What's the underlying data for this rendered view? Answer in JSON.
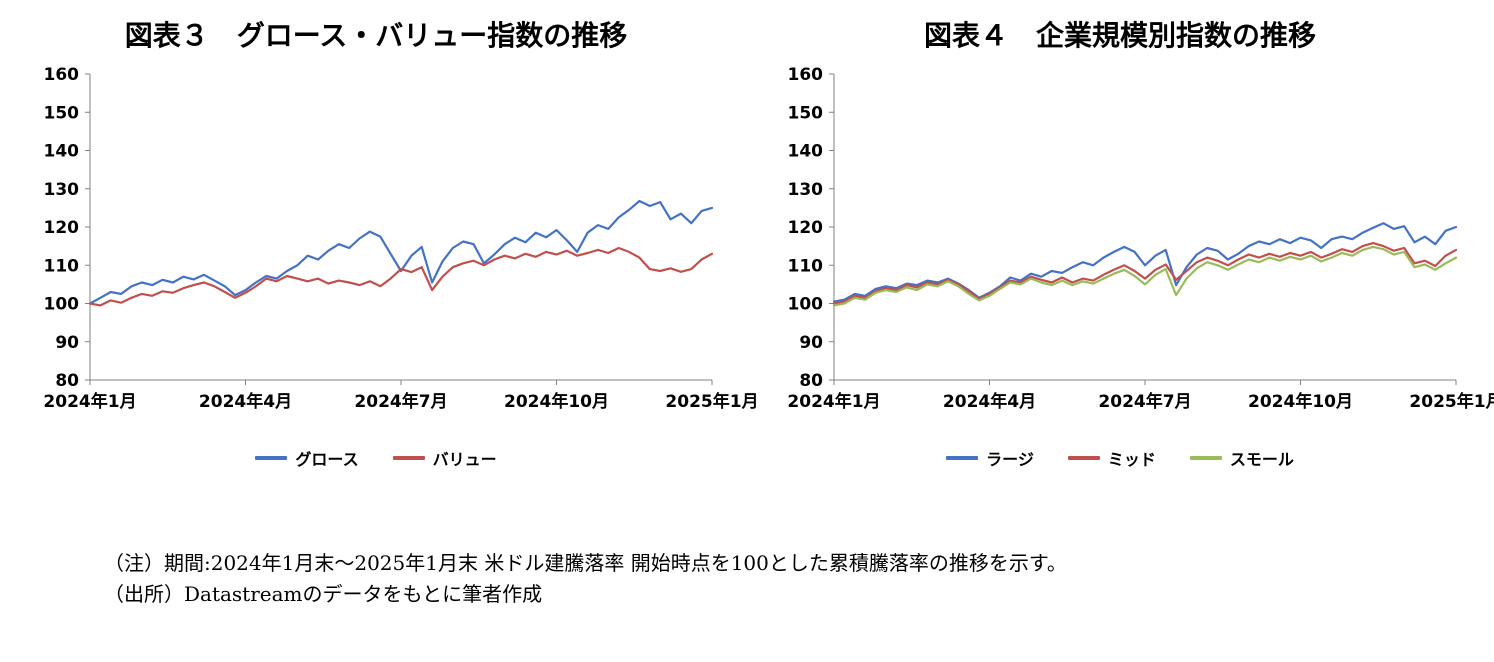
{
  "chart_data": [
    {
      "type": "line",
      "title": "図表３　グロース・バリュー指数の推移",
      "ylim": [
        80,
        160
      ],
      "y_ticks": [
        160,
        150,
        140,
        130,
        120,
        110,
        100,
        90,
        80
      ],
      "x_ticks": [
        "2024年1月",
        "2024年4月",
        "2024年7月",
        "2024年10月",
        "2025年1月"
      ],
      "grid": false,
      "legend_position": "bottom",
      "series": [
        {
          "name": "グロース",
          "color": "#4472C4",
          "values": [
            100,
            101.5,
            103,
            102.5,
            104.5,
            105.5,
            104.8,
            106.2,
            105.5,
            107,
            106.3,
            107.5,
            106,
            104.5,
            102.2,
            103.5,
            105.5,
            107.2,
            106.5,
            108.5,
            110,
            112.5,
            111.5,
            113.8,
            115.5,
            114.5,
            117,
            118.8,
            117.5,
            113,
            108.5,
            112.5,
            114.8,
            105.5,
            111,
            114.5,
            116.2,
            115.5,
            110.5,
            112.8,
            115.5,
            117.2,
            116,
            118.5,
            117.3,
            119.2,
            116.5,
            113.5,
            118.5,
            120.5,
            119.5,
            122.5,
            124.5,
            126.8,
            125.5,
            126.5,
            122,
            123.5,
            121,
            124.2,
            125
          ]
        },
        {
          "name": "バリュー",
          "color": "#C0504D",
          "values": [
            100,
            99.5,
            100.8,
            100.2,
            101.5,
            102.5,
            102,
            103.2,
            102.8,
            104,
            104.8,
            105.5,
            104.5,
            103,
            101.5,
            102.8,
            104.5,
            106.5,
            105.8,
            107.2,
            106.5,
            105.8,
            106.5,
            105.2,
            106,
            105.5,
            104.8,
            105.8,
            104.5,
            106.5,
            109,
            108.2,
            109.5,
            103.5,
            107,
            109.5,
            110.5,
            111.2,
            110,
            111.5,
            112.5,
            111.8,
            113,
            112.2,
            113.5,
            112.8,
            113.8,
            112.5,
            113.2,
            114,
            113.2,
            114.5,
            113.5,
            112,
            109,
            108.5,
            109.2,
            108.3,
            109,
            111.5,
            113
          ]
        }
      ]
    },
    {
      "type": "line",
      "title": "図表４　企業規模別指数の推移",
      "ylim": [
        80,
        160
      ],
      "y_ticks": [
        160,
        150,
        140,
        130,
        120,
        110,
        100,
        90,
        80
      ],
      "x_ticks": [
        "2024年1月",
        "2024年4月",
        "2024年7月",
        "2024年10月",
        "2025年1月"
      ],
      "grid": false,
      "legend_position": "bottom",
      "series": [
        {
          "name": "ラージ",
          "color": "#4472C4",
          "values": [
            100.5,
            101,
            102.5,
            102,
            103.8,
            104.5,
            104,
            105.2,
            104.8,
            106,
            105.5,
            106.5,
            105.2,
            103.5,
            101.5,
            102.8,
            104.5,
            106.8,
            106,
            107.8,
            107,
            108.5,
            108,
            109.5,
            110.8,
            110,
            112,
            113.5,
            114.8,
            113.5,
            110,
            112.5,
            114,
            104.8,
            109.5,
            112.8,
            114.5,
            113.8,
            111.5,
            113,
            115,
            116.2,
            115.5,
            116.8,
            115.8,
            117.2,
            116.5,
            114.5,
            116.8,
            117.5,
            116.8,
            118.5,
            119.8,
            121,
            119.5,
            120.2,
            116,
            117.5,
            115.5,
            119,
            120
          ]
        },
        {
          "name": "ミッド",
          "color": "#C0504D",
          "values": [
            100,
            100.5,
            102,
            101.5,
            103.2,
            104,
            103.5,
            104.8,
            104.2,
            105.5,
            105,
            106.2,
            105,
            103.2,
            101.2,
            102.5,
            104.2,
            106,
            105.5,
            107,
            106.2,
            105.5,
            106.8,
            105.5,
            106.5,
            106,
            107.5,
            108.8,
            110,
            108.5,
            106.5,
            108.8,
            110.2,
            106.2,
            108.5,
            110.8,
            112,
            111.2,
            110,
            111.5,
            112.8,
            112,
            113,
            112.2,
            113.2,
            112.5,
            113.5,
            112,
            113,
            114.2,
            113.5,
            115,
            115.8,
            115,
            113.8,
            114.5,
            110.5,
            111.2,
            109.8,
            112.5,
            114
          ]
        },
        {
          "name": "スモール",
          "color": "#9BBB59",
          "values": [
            99.5,
            100,
            101.5,
            101,
            102.8,
            103.5,
            103,
            104.2,
            103.5,
            105,
            104.5,
            105.8,
            104.5,
            102.5,
            100.8,
            102,
            103.8,
            105.5,
            105,
            106.5,
            105.5,
            104.8,
            106,
            104.8,
            105.8,
            105.2,
            106.5,
            107.8,
            108.8,
            107.2,
            105,
            107.5,
            109,
            102.2,
            106.5,
            109.2,
            110.8,
            110,
            108.8,
            110.2,
            111.5,
            110.8,
            112,
            111.2,
            112.2,
            111.5,
            112.5,
            111,
            112,
            113.2,
            112.5,
            114,
            114.8,
            114.2,
            112.8,
            113.5,
            109.5,
            110.2,
            108.8,
            110.5,
            112
          ]
        }
      ]
    }
  ],
  "notes": {
    "line1": "（注）期間:2024年1月末～2025年1月末 米ドル建騰落率 開始時点を100とした累積騰落率の推移を示す。",
    "line2": "（出所）Datastreamのデータをもとに筆者作成"
  },
  "style": {
    "axis_color": "#808080",
    "line_width": 2.2
  }
}
